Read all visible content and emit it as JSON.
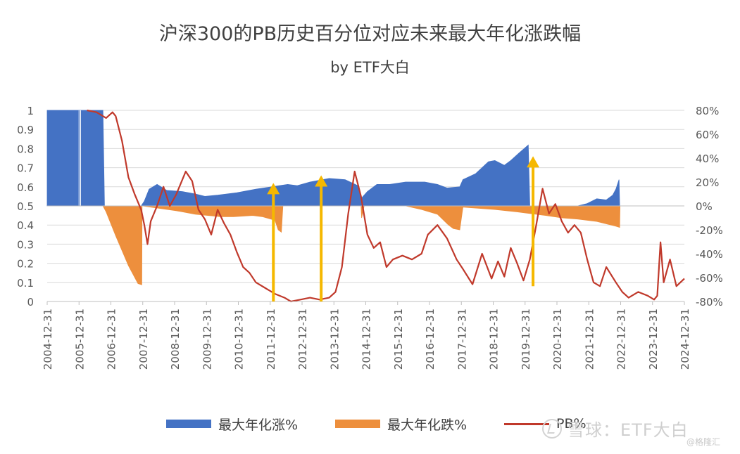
{
  "chart_data": {
    "type": "area+line",
    "title": "沪深300的PB历史百分位对应未来最大年化涨跌幅",
    "subtitle": "by ETF大白",
    "x_tick_labels": [
      "2004-12-31",
      "2005-12-31",
      "2006-12-31",
      "2007-12-31",
      "2008-12-31",
      "2009-12-31",
      "2010-12-31",
      "2011-12-31",
      "2012-12-31",
      "2013-12-31",
      "2014-12-31",
      "2015-12-31",
      "2016-12-31",
      "2017-12-31",
      "2018-12-31",
      "2019-12-31",
      "2020-12-31",
      "2021-12-31",
      "2022-12-31",
      "2023-12-31",
      "2024-12-31"
    ],
    "y_left_ticks": [
      "0",
      "0.1",
      "0.2",
      "0.3",
      "0.4",
      "0.5",
      "0.6",
      "0.7",
      "0.8",
      "0.9",
      "1"
    ],
    "y_right_ticks": [
      "-80%",
      "-60%",
      "-40%",
      "-20%",
      "0%",
      "20%",
      "40%",
      "60%",
      "80%"
    ],
    "ylim_left": [
      0,
      1
    ],
    "ylim_right": [
      -80,
      80
    ],
    "grid": true,
    "legend_position": "bottom",
    "series": [
      {
        "name": "最大年化涨%",
        "axis": "right",
        "kind": "area",
        "color": "#4472c4",
        "points": [
          [
            2004.95,
            80
          ],
          [
            2005.6,
            80
          ],
          [
            2006.0,
            80
          ],
          [
            2006.7,
            80
          ],
          [
            2006.75,
            0
          ],
          [
            2007.9,
            0
          ],
          [
            2008.0,
            4
          ],
          [
            2008.15,
            14
          ],
          [
            2008.4,
            18
          ],
          [
            2008.7,
            13
          ],
          [
            2009.2,
            12
          ],
          [
            2009.6,
            10
          ],
          [
            2009.9,
            8
          ],
          [
            2010.3,
            9
          ],
          [
            2010.9,
            11
          ],
          [
            2011.5,
            14
          ],
          [
            2012.0,
            16
          ],
          [
            2012.5,
            18
          ],
          [
            2012.8,
            17
          ],
          [
            2013.2,
            20
          ],
          [
            2013.8,
            23
          ],
          [
            2014.3,
            22
          ],
          [
            2014.7,
            17
          ],
          [
            2014.8,
            6
          ],
          [
            2015.0,
            12
          ],
          [
            2015.3,
            18
          ],
          [
            2015.7,
            18
          ],
          [
            2016.2,
            20
          ],
          [
            2016.8,
            20
          ],
          [
            2017.2,
            18
          ],
          [
            2017.5,
            15
          ],
          [
            2017.9,
            16
          ],
          [
            2018.0,
            22
          ],
          [
            2018.4,
            27
          ],
          [
            2018.8,
            37
          ],
          [
            2019.0,
            38
          ],
          [
            2019.3,
            34
          ],
          [
            2019.5,
            38
          ],
          [
            2019.75,
            44
          ],
          [
            2020.05,
            51
          ],
          [
            2020.1,
            0
          ],
          [
            2021.3,
            0
          ],
          [
            2021.6,
            0
          ],
          [
            2021.9,
            2
          ],
          [
            2022.2,
            6
          ],
          [
            2022.5,
            5
          ],
          [
            2022.7,
            9
          ],
          [
            2022.8,
            14
          ],
          [
            2022.9,
            22
          ],
          [
            2022.92,
            0
          ]
        ]
      },
      {
        "name": "最大年化跌%",
        "axis": "right",
        "kind": "area",
        "color": "#ed8f3d",
        "points": [
          [
            2006.7,
            0
          ],
          [
            2006.8,
            -5
          ],
          [
            2007.1,
            -25
          ],
          [
            2007.5,
            -50
          ],
          [
            2007.8,
            -65
          ],
          [
            2007.92,
            -66
          ],
          [
            2007.93,
            0
          ],
          [
            2009.0,
            -4
          ],
          [
            2009.6,
            -7
          ],
          [
            2010.0,
            -8
          ],
          [
            2010.4,
            -9
          ],
          [
            2010.8,
            -9
          ],
          [
            2011.4,
            -8
          ],
          [
            2011.7,
            -9
          ],
          [
            2012.1,
            -12
          ],
          [
            2012.2,
            -20
          ],
          [
            2012.3,
            -22
          ],
          [
            2012.35,
            0
          ],
          [
            2014.8,
            0
          ],
          [
            2014.82,
            -10
          ],
          [
            2014.9,
            0
          ],
          [
            2016.2,
            0
          ],
          [
            2016.7,
            -3
          ],
          [
            2017.2,
            -7
          ],
          [
            2017.55,
            -16
          ],
          [
            2017.7,
            -19
          ],
          [
            2017.9,
            -20
          ],
          [
            2018.0,
            -1
          ],
          [
            2019.0,
            -3
          ],
          [
            2019.7,
            -5
          ],
          [
            2020.0,
            -6
          ],
          [
            2020.6,
            -8
          ],
          [
            2021.1,
            -10
          ],
          [
            2021.6,
            -11
          ],
          [
            2022.2,
            -13
          ],
          [
            2022.8,
            -17
          ],
          [
            2022.92,
            -18
          ],
          [
            2022.93,
            0
          ]
        ]
      },
      {
        "name": "PB%",
        "axis": "left",
        "kind": "line",
        "color": "#c0392b",
        "points": [
          [
            2006.2,
            1.0
          ],
          [
            2006.5,
            0.99
          ],
          [
            2006.8,
            0.96
          ],
          [
            2007.0,
            0.99
          ],
          [
            2007.1,
            0.97
          ],
          [
            2007.3,
            0.84
          ],
          [
            2007.5,
            0.65
          ],
          [
            2007.7,
            0.56
          ],
          [
            2007.9,
            0.48
          ],
          [
            2008.0,
            0.4
          ],
          [
            2008.1,
            0.3
          ],
          [
            2008.2,
            0.42
          ],
          [
            2008.4,
            0.5
          ],
          [
            2008.6,
            0.6
          ],
          [
            2008.8,
            0.5
          ],
          [
            2009.0,
            0.56
          ],
          [
            2009.3,
            0.68
          ],
          [
            2009.5,
            0.63
          ],
          [
            2009.7,
            0.48
          ],
          [
            2009.9,
            0.43
          ],
          [
            2010.1,
            0.35
          ],
          [
            2010.3,
            0.48
          ],
          [
            2010.5,
            0.41
          ],
          [
            2010.7,
            0.35
          ],
          [
            2010.9,
            0.26
          ],
          [
            2011.1,
            0.18
          ],
          [
            2011.3,
            0.15
          ],
          [
            2011.5,
            0.1
          ],
          [
            2011.8,
            0.07
          ],
          [
            2012.1,
            0.04
          ],
          [
            2012.4,
            0.02
          ],
          [
            2012.6,
            0.0
          ],
          [
            2012.9,
            0.01
          ],
          [
            2013.2,
            0.02
          ],
          [
            2013.5,
            0.01
          ],
          [
            2013.8,
            0.02
          ],
          [
            2014.0,
            0.05
          ],
          [
            2014.2,
            0.18
          ],
          [
            2014.4,
            0.46
          ],
          [
            2014.6,
            0.68
          ],
          [
            2014.8,
            0.55
          ],
          [
            2015.0,
            0.35
          ],
          [
            2015.2,
            0.28
          ],
          [
            2015.4,
            0.31
          ],
          [
            2015.6,
            0.18
          ],
          [
            2015.8,
            0.22
          ],
          [
            2016.1,
            0.24
          ],
          [
            2016.4,
            0.22
          ],
          [
            2016.7,
            0.25
          ],
          [
            2016.9,
            0.35
          ],
          [
            2017.2,
            0.4
          ],
          [
            2017.5,
            0.33
          ],
          [
            2017.8,
            0.22
          ],
          [
            2018.0,
            0.17
          ],
          [
            2018.3,
            0.09
          ],
          [
            2018.6,
            0.25
          ],
          [
            2018.9,
            0.12
          ],
          [
            2019.1,
            0.21
          ],
          [
            2019.3,
            0.13
          ],
          [
            2019.5,
            0.28
          ],
          [
            2019.7,
            0.2
          ],
          [
            2019.9,
            0.11
          ],
          [
            2020.1,
            0.22
          ],
          [
            2020.3,
            0.4
          ],
          [
            2020.5,
            0.59
          ],
          [
            2020.7,
            0.46
          ],
          [
            2020.9,
            0.51
          ],
          [
            2021.1,
            0.42
          ],
          [
            2021.3,
            0.36
          ],
          [
            2021.5,
            0.4
          ],
          [
            2021.7,
            0.36
          ],
          [
            2021.9,
            0.22
          ],
          [
            2022.1,
            0.1
          ],
          [
            2022.3,
            0.08
          ],
          [
            2022.5,
            0.18
          ],
          [
            2022.8,
            0.1
          ],
          [
            2023.0,
            0.05
          ],
          [
            2023.2,
            0.02
          ],
          [
            2023.5,
            0.05
          ],
          [
            2023.8,
            0.03
          ],
          [
            2024.0,
            0.01
          ],
          [
            2024.1,
            0.03
          ],
          [
            2024.2,
            0.31
          ],
          [
            2024.3,
            0.1
          ],
          [
            2024.5,
            0.22
          ],
          [
            2024.7,
            0.08
          ],
          [
            2024.95,
            0.12
          ]
        ]
      }
    ],
    "annotations": {
      "arrows": {
        "color": "#f5b800",
        "items": [
          {
            "x": 2012.05,
            "y_from": 0.0,
            "y_to": 0.62
          },
          {
            "x": 2013.55,
            "y_from": 0.0,
            "y_to": 0.66
          },
          {
            "x": 2020.2,
            "y_from": 0.08,
            "y_to": 0.76
          }
        ]
      }
    }
  },
  "legend": {
    "rise_label": "最大年化涨%",
    "fall_label": "最大年化跌%",
    "pb_label": "PB%"
  },
  "watermark": {
    "text": "雪球：ETF大白",
    "sub": "@格隆汇"
  }
}
